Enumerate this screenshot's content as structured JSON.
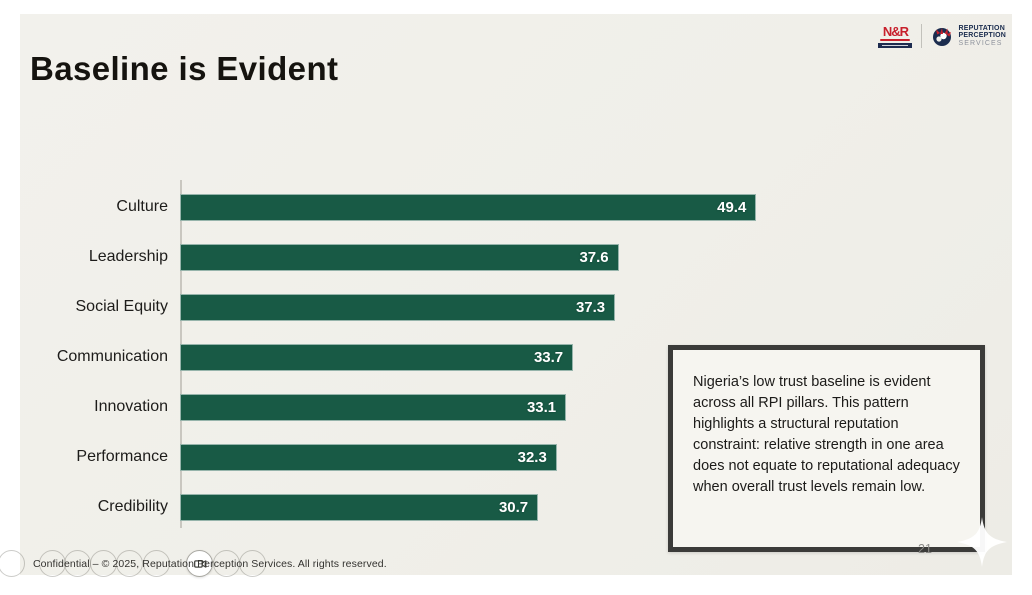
{
  "slide": {
    "title": "Baseline is Evident",
    "page_number": "21",
    "footer": "Confidential – © 2025, Reputation Perception Services. All rights reserved."
  },
  "logos": {
    "nr": {
      "letters": "N&R"
    },
    "rps": {
      "line1": "REPUTATION",
      "line2": "PERCEPTION",
      "line3": "SERVICES"
    }
  },
  "annotation": {
    "text": "Nigeria’s low trust baseline is evident across all RPI pillars. This pattern highlights a structural reputation constraint: relative strength in one area does not equate to reputational adequacy when overall trust levels remain low."
  },
  "chart_data": {
    "type": "bar",
    "orientation": "horizontal",
    "title": "",
    "xlabel": "",
    "ylabel": "",
    "categories": [
      "Culture",
      "Leadership",
      "Social Equity",
      "Communication",
      "Innovation",
      "Performance",
      "Credibility"
    ],
    "values": [
      49.4,
      37.6,
      37.3,
      33.7,
      33.1,
      32.3,
      30.7
    ],
    "xlim": [
      0,
      54
    ],
    "grid": false,
    "legend": false,
    "bar_color": "#185a45",
    "value_label_color": "#ffffff"
  }
}
